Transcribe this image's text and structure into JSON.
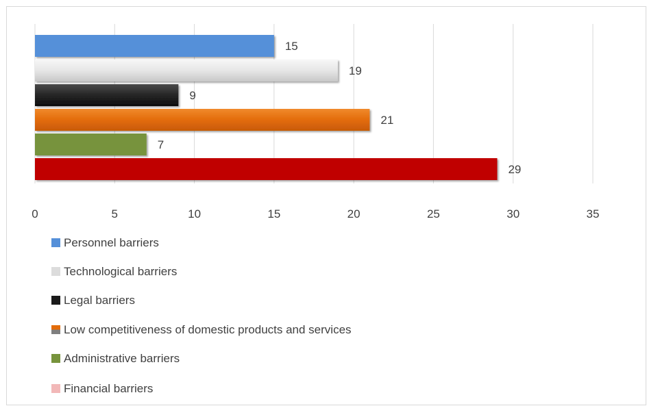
{
  "chart_data": {
    "type": "bar",
    "orientation": "horizontal",
    "xlim": [
      0,
      35
    ],
    "x_ticks": [
      0,
      5,
      10,
      15,
      20,
      25,
      30,
      35
    ],
    "x_tick_labels": [
      "0",
      "5",
      "10",
      "15",
      "20",
      "25",
      "30",
      "35"
    ],
    "grid": true,
    "legend_position": "bottom",
    "series": [
      {
        "name": "Personnel barriers",
        "value": 15,
        "label": "15",
        "color": "#5590d9",
        "style": "flat"
      },
      {
        "name": "Technological barriers",
        "value": 19,
        "label": "19",
        "color": "#d9d9d9",
        "style": "gradient"
      },
      {
        "name": "Legal barriers",
        "value": 9,
        "label": "9",
        "color": "#1a1a1a",
        "style": "gradient"
      },
      {
        "name": "Low competitiveness of domestic products and services",
        "value": 21,
        "label": "21",
        "color": "#e36c0a",
        "style": "gradient"
      },
      {
        "name": "Administrative barriers",
        "value": 7,
        "label": "7",
        "color": "#77933c",
        "style": "flat"
      },
      {
        "name": "Financial barriers",
        "value": 29,
        "label": "29",
        "color": "#c00000",
        "style": "flat"
      }
    ],
    "legend_colors": [
      "#5590d9",
      "#d9d9d9",
      "#1a1a1a",
      "#e36c0a",
      "#77933c",
      "#f2b8b8"
    ]
  }
}
